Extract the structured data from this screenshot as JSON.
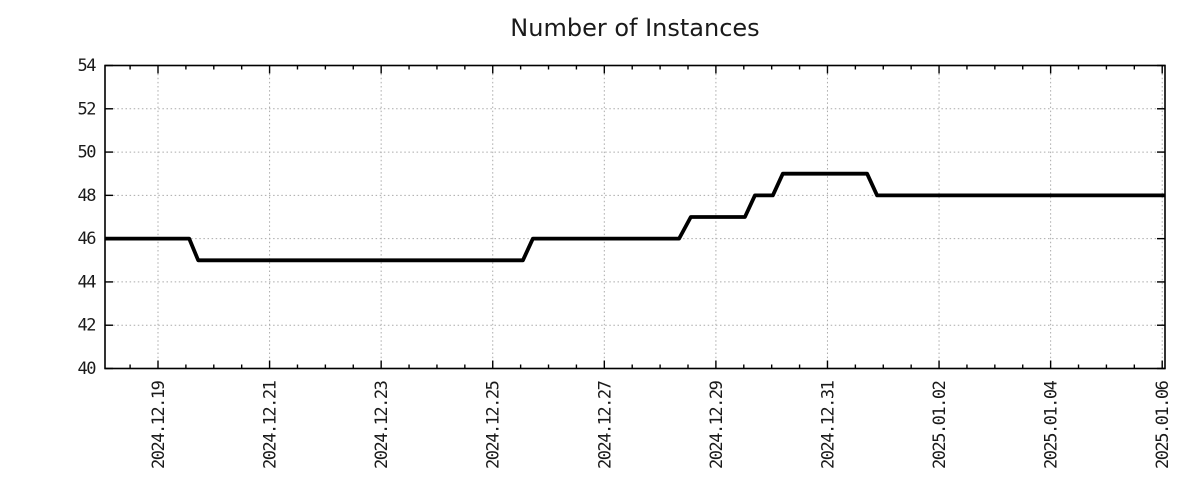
{
  "chart_data": {
    "type": "line",
    "line_style": "step",
    "title": "Number of Instances",
    "xlabel": "",
    "ylabel": "",
    "legend": "none",
    "grid": "dotted gridlines at major ticks, both axes",
    "ylim": [
      40,
      54
    ],
    "yticks": [
      40,
      42,
      44,
      46,
      48,
      50,
      52,
      54
    ],
    "x_range_days": [
      -0.95,
      18.05
    ],
    "x_minor_tick_interval_days": 0.5,
    "x_ticks": [
      {
        "label": "2024.12.19",
        "day": 0
      },
      {
        "label": "2024.12.21",
        "day": 2
      },
      {
        "label": "2024.12.23",
        "day": 4
      },
      {
        "label": "2024.12.25",
        "day": 6
      },
      {
        "label": "2024.12.27",
        "day": 8
      },
      {
        "label": "2024.12.29",
        "day": 10
      },
      {
        "label": "2024.12.31",
        "day": 12
      },
      {
        "label": "2025.01.02",
        "day": 14
      },
      {
        "label": "2025.01.04",
        "day": 16
      },
      {
        "label": "2025.01.06",
        "day": 18
      }
    ],
    "series": [
      {
        "name": "Number of Instances",
        "color": "#000000",
        "points": [
          [
            -0.95,
            46
          ],
          [
            0.56,
            46
          ],
          [
            0.72,
            45
          ],
          [
            6.54,
            45
          ],
          [
            6.72,
            46
          ],
          [
            9.34,
            46
          ],
          [
            9.55,
            47
          ],
          [
            10.52,
            47
          ],
          [
            10.7,
            48
          ],
          [
            11.02,
            48
          ],
          [
            11.2,
            49
          ],
          [
            12.71,
            49
          ],
          [
            12.89,
            48
          ],
          [
            18.05,
            48
          ]
        ]
      }
    ],
    "approx_step_events": [
      {
        "at": "start of plot (~2024-12-18)",
        "value": 46
      },
      {
        "at": "2024-12-19 ~15:00",
        "value": 45
      },
      {
        "at": "2024-12-25 ~16:00",
        "value": 46
      },
      {
        "at": "2024-12-28 ~11:00",
        "value": 47
      },
      {
        "at": "2024-12-29 ~14:00",
        "value": 48
      },
      {
        "at": "2024-12-30 ~03:00",
        "value": 49
      },
      {
        "at": "2024-12-31 ~19:00",
        "value": 48
      },
      {
        "at": "end of plot (2025-01-06)",
        "value": 48
      }
    ],
    "colors": {
      "line": "#000000",
      "grid": "#aaaaaa",
      "frame": "#000000",
      "text": "#1a1a1a",
      "background": "#ffffff"
    }
  }
}
